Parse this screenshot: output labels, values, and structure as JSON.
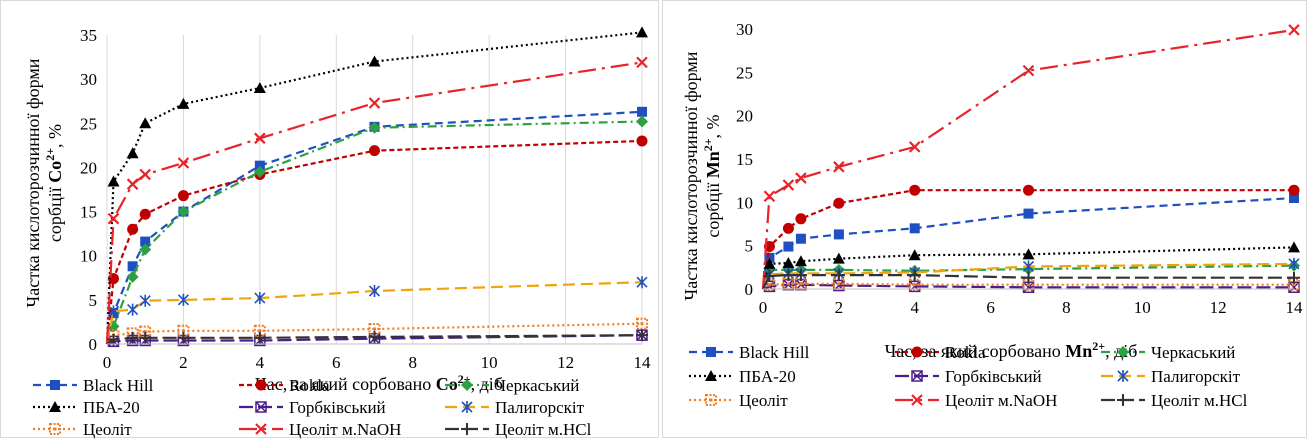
{
  "charts": [
    {
      "title": "",
      "ylabel_line1": "Частка кислоторозчинної форми",
      "ylabel_prefix": "сорбції ",
      "ylabel_ion": "Co",
      "ylabel_sup": "2+",
      "ylabel_suffix": ", %",
      "xlabel_prefix": "Час, за який сорбовано ",
      "xlabel_ion": "Co",
      "xlabel_sup": "2+",
      "xlabel_suffix": ", діб",
      "legend": [
        "Black Hill",
        "Rokla",
        "Черкаський",
        "ПБА-20",
        "Горбківський",
        "Палигорскіт",
        "Цеоліт",
        "Цеоліт м.NaOH",
        "Цеоліт м.HCl"
      ]
    },
    {
      "title": "",
      "ylabel_line1": "Частка кислоторозчинної форми",
      "ylabel_prefix": "сорбції ",
      "ylabel_ion": "Mn",
      "ylabel_sup": "2+",
      "ylabel_suffix": ", %",
      "xlabel_prefix": "Час, за який сорбовано ",
      "xlabel_ion": "Mn",
      "xlabel_sup": "2+",
      "xlabel_suffix": ", діб",
      "legend": [
        "Black Hill",
        "Rokla",
        "Черкаський",
        "ПБА-20",
        "Горбківський",
        "Палигорскіт",
        "Цеоліт",
        "Цеоліт м.NaOH",
        "Цеоліт м.HCl"
      ]
    }
  ],
  "chart_data": [
    {
      "type": "line",
      "xlim": [
        0,
        14
      ],
      "ylim": [
        0,
        35
      ],
      "xticks": [
        "0",
        "2",
        "4",
        "6",
        "8",
        "10",
        "12",
        "14"
      ],
      "yticks": [
        "0",
        "5",
        "10",
        "15",
        "20",
        "25",
        "30",
        "35"
      ],
      "grid": "vertical",
      "legend_position": "bottom",
      "x": [
        0,
        0.17,
        0.67,
        1,
        2,
        4,
        7,
        14
      ],
      "series": [
        {
          "name": "Black Hill",
          "color": "#1f4fc1",
          "dash": "8,5",
          "marker": "square",
          "values": [
            0,
            3.5,
            8.8,
            11.6,
            15,
            20.2,
            24.6,
            26.3
          ]
        },
        {
          "name": "Rokla",
          "color": "#c00000",
          "dash": "5,3",
          "marker": "circle",
          "values": [
            0,
            7.4,
            13,
            14.7,
            16.8,
            19.2,
            21.9,
            23
          ]
        },
        {
          "name": "Черкаський",
          "color": "#2ea043",
          "dash": "9,4,2,4",
          "marker": "diamond",
          "values": [
            0,
            2,
            7.6,
            10.7,
            15,
            19.5,
            24.5,
            25.2
          ]
        },
        {
          "name": "ПБА-20",
          "color": "#000000",
          "dash": "2,3",
          "marker": "triangle",
          "values": [
            0,
            18.4,
            21.6,
            25,
            27.2,
            29,
            32,
            35.3
          ]
        },
        {
          "name": "Горбківський",
          "color": "#4b1d8c",
          "dash": "14,5",
          "marker": "xsquare",
          "values": [
            0,
            0.3,
            0.4,
            0.4,
            0.4,
            0.4,
            0.6,
            1
          ]
        },
        {
          "name": "Палигорскіт",
          "color": "#f0a30a",
          "dash": "12,6",
          "marker": "asterisk",
          "marker_color": "#1f4fc1",
          "values": [
            0,
            3.7,
            3.9,
            4.9,
            5,
            5.2,
            6,
            7
          ]
        },
        {
          "name": "Цеоліт",
          "color": "#f07c20",
          "dash": "2,3",
          "marker": "dotsquare",
          "values": [
            0,
            1,
            1.2,
            1.4,
            1.5,
            1.5,
            1.7,
            2.3
          ]
        },
        {
          "name": "Цеоліт м.NaOH",
          "color": "#e8232a",
          "dash": "18,6,3,6",
          "marker": "x",
          "values": [
            0,
            14.2,
            18.1,
            19.2,
            20.5,
            23.3,
            27.3,
            31.9
          ]
        },
        {
          "name": "Цеоліт м.HCl",
          "color": "#333333",
          "dash": "14,5",
          "marker": "plus",
          "values": [
            0,
            0.5,
            0.7,
            0.7,
            0.7,
            0.7,
            0.8,
            1
          ]
        }
      ]
    },
    {
      "type": "line",
      "xlim": [
        0,
        14
      ],
      "ylim": [
        0,
        30
      ],
      "xticks": [
        "0",
        "2",
        "4",
        "6",
        "8",
        "10",
        "12",
        "14"
      ],
      "yticks": [
        "0",
        "5",
        "10",
        "15",
        "20",
        "25",
        "30"
      ],
      "grid": "none",
      "legend_position": "bottom",
      "x": [
        0,
        0.17,
        0.67,
        1,
        2,
        4,
        7,
        14
      ],
      "series": [
        {
          "name": "Black Hill",
          "color": "#1f4fc1",
          "dash": "8,5",
          "marker": "square",
          "values": [
            0,
            3.6,
            4.9,
            5.8,
            6.3,
            7,
            8.7,
            10.5
          ]
        },
        {
          "name": "Rokla",
          "color": "#c00000",
          "dash": "5,3",
          "marker": "circle",
          "values": [
            0,
            4.9,
            7,
            8.1,
            9.9,
            11.4,
            11.4,
            11.4
          ]
        },
        {
          "name": "Черкаський",
          "color": "#2ea043",
          "dash": "9,4,2,4",
          "marker": "diamond",
          "values": [
            0,
            2.2,
            2.2,
            2.2,
            2.2,
            2.1,
            2.3,
            2.7
          ]
        },
        {
          "name": "ПБА-20",
          "color": "#000000",
          "dash": "2,3",
          "marker": "triangle",
          "values": [
            0,
            2.9,
            3,
            3.2,
            3.5,
            3.9,
            4,
            4.8
          ]
        },
        {
          "name": "Горбківський",
          "color": "#4b1d8c",
          "dash": "14,5",
          "marker": "xsquare",
          "values": [
            0,
            0.3,
            0.5,
            0.5,
            0.4,
            0.3,
            0.2,
            0.2
          ]
        },
        {
          "name": "Палигорскіт",
          "color": "#f0a30a",
          "dash": "12,6",
          "marker": "asterisk",
          "marker_color": "#1f4fc1",
          "values": [
            0,
            1.7,
            1.8,
            1.8,
            1.8,
            1.9,
            2.6,
            2.9
          ]
        },
        {
          "name": "Цеоліт",
          "color": "#f07c20",
          "dash": "2,3",
          "marker": "dotsquare",
          "values": [
            0,
            0.5,
            0.6,
            0.6,
            0.6,
            0.5,
            0.5,
            0.5
          ]
        },
        {
          "name": "Цеоліт м.NaOH",
          "color": "#e8232a",
          "dash": "18,6,3,6",
          "marker": "x",
          "values": [
            0,
            10.7,
            12,
            12.8,
            14.1,
            16.4,
            25.2,
            29.9
          ]
        },
        {
          "name": "Цеоліт м.HCl",
          "color": "#333333",
          "dash": "14,5",
          "marker": "plus",
          "values": [
            0,
            1.5,
            1.6,
            1.6,
            1.6,
            1.6,
            1.3,
            1.3
          ]
        }
      ]
    }
  ]
}
